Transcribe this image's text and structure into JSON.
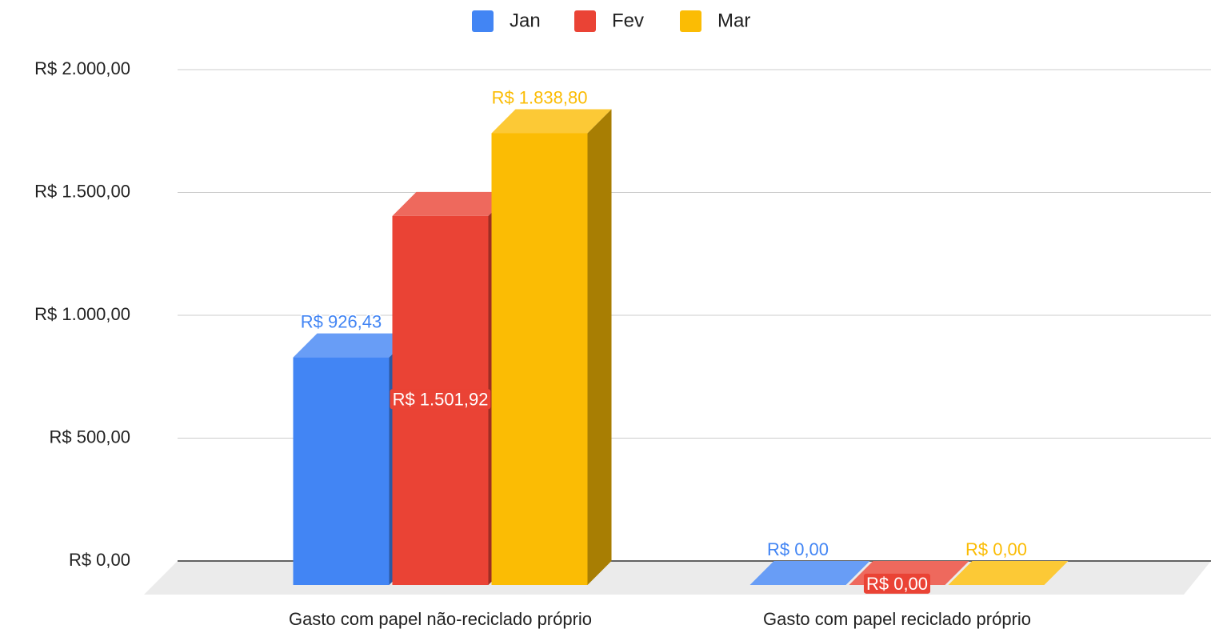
{
  "chart_data": {
    "type": "bar3d",
    "categories": [
      "Gasto com papel não-reciclado próprio",
      "Gasto com papel reciclado próprio"
    ],
    "series": [
      {
        "name": "Jan",
        "color": "#4285f4",
        "values": [
          926.43,
          0
        ],
        "value_labels": [
          "R$ 926,43",
          "R$ 0,00"
        ]
      },
      {
        "name": "Fev",
        "color": "#ea4335",
        "values": [
          1501.92,
          0
        ],
        "value_labels": [
          "R$ 1.501,92",
          "R$ 0,00"
        ]
      },
      {
        "name": "Mar",
        "color": "#fbbc04",
        "values": [
          1838.8,
          0
        ],
        "value_labels": [
          "R$ 1.838,80",
          "R$ 0,00"
        ]
      }
    ],
    "ylim": [
      0,
      2000
    ],
    "yticks": [
      {
        "value": 0,
        "label": "R$ 0,00"
      },
      {
        "value": 500,
        "label": "R$ 500,00"
      },
      {
        "value": 1000,
        "label": "R$ 1.000,00"
      },
      {
        "value": 1500,
        "label": "R$ 1.500,00"
      },
      {
        "value": 2000,
        "label": "R$ 2.000,00"
      }
    ],
    "grid": true,
    "legend": "top"
  }
}
